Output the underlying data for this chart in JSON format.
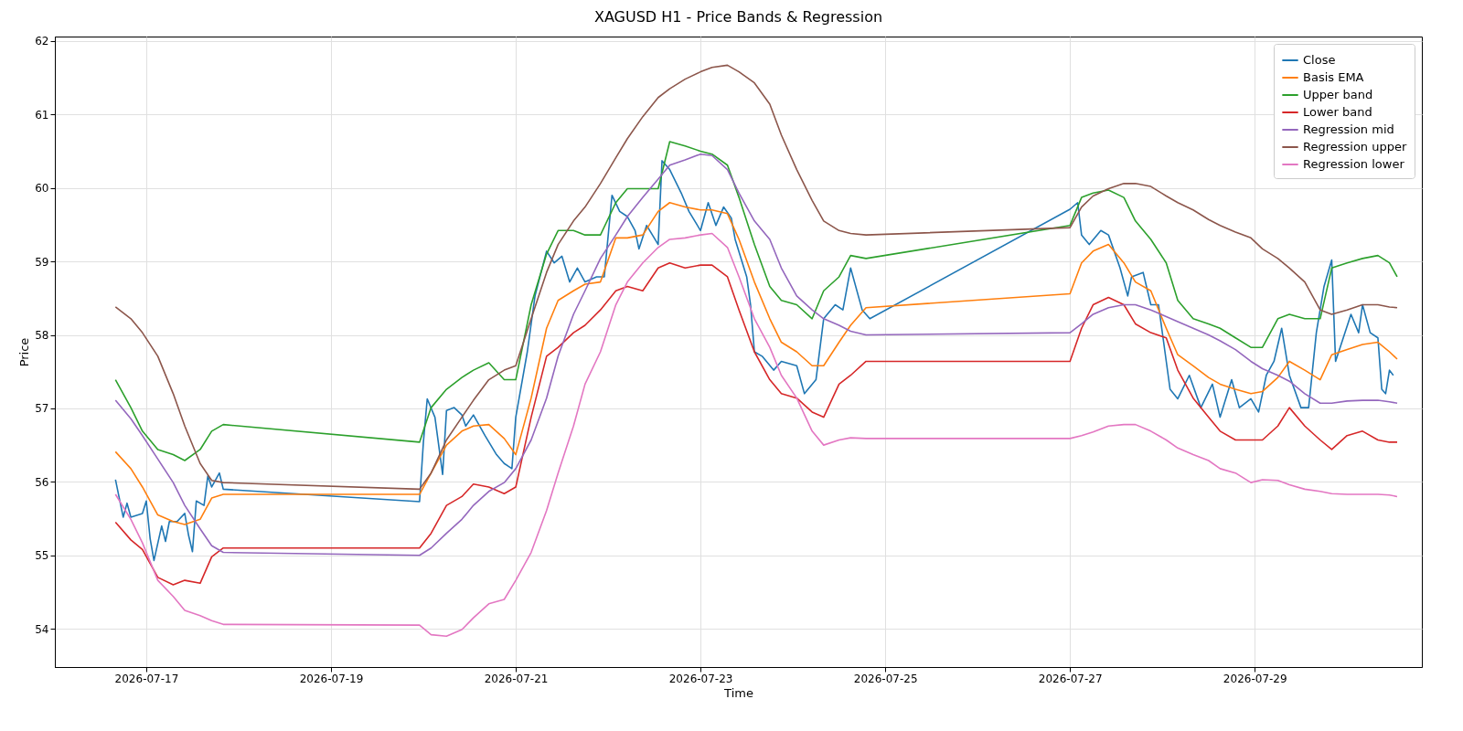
{
  "chart_data": {
    "type": "line",
    "title": "XAGUSD H1 - Price Bands & Regression",
    "xlabel": "Time",
    "ylabel": "Price",
    "grid": true,
    "legend": "top right",
    "xlim": [
      "2026-07-16T00:15",
      "2026-07-30T19:25"
    ],
    "xticks": [
      {
        "value": "2026-07-17",
        "label": "2026-07-17"
      },
      {
        "value": "2026-07-19",
        "label": "2026-07-19"
      },
      {
        "value": "2026-07-21",
        "label": "2026-07-21"
      },
      {
        "value": "2026-07-23",
        "label": "2026-07-23"
      },
      {
        "value": "2026-07-25",
        "label": "2026-07-25"
      },
      {
        "value": "2026-07-27",
        "label": "2026-07-27"
      },
      {
        "value": "2026-07-29",
        "label": "2026-07-29"
      }
    ],
    "ylim": [
      53.48,
      62.06
    ],
    "yticks": [
      54,
      55,
      56,
      57,
      58,
      59,
      60,
      61,
      62
    ],
    "x": [
      "2026-07-16T16:00",
      "2026-07-16T20:00",
      "2026-07-16T23:00",
      "2026-07-17T03:00",
      "2026-07-17T07:00",
      "2026-07-17T10:00",
      "2026-07-17T14:00",
      "2026-07-17T17:00",
      "2026-07-17T20:00",
      "2026-07-19T23:00",
      "2026-07-20T02:00",
      "2026-07-20T06:00",
      "2026-07-20T10:00",
      "2026-07-20T13:00",
      "2026-07-20T17:00",
      "2026-07-20T21:00",
      "2026-07-21T00:00",
      "2026-07-21T04:00",
      "2026-07-21T08:00",
      "2026-07-21T11:00",
      "2026-07-21T15:00",
      "2026-07-21T18:00",
      "2026-07-21T22:00",
      "2026-07-22T02:00",
      "2026-07-22T05:00",
      "2026-07-22T09:00",
      "2026-07-22T13:00",
      "2026-07-22T16:00",
      "2026-07-22T20:00",
      "2026-07-23T00:00",
      "2026-07-23T03:00",
      "2026-07-23T07:00",
      "2026-07-23T10:00",
      "2026-07-23T14:00",
      "2026-07-23T18:00",
      "2026-07-23T21:00",
      "2026-07-24T01:00",
      "2026-07-24T05:00",
      "2026-07-24T08:00",
      "2026-07-24T12:00",
      "2026-07-24T15:00",
      "2026-07-24T19:00",
      "2026-07-27T00:00",
      "2026-07-27T03:00",
      "2026-07-27T06:00",
      "2026-07-27T10:00",
      "2026-07-27T14:00",
      "2026-07-27T17:00",
      "2026-07-27T21:00",
      "2026-07-28T01:00",
      "2026-07-28T04:00",
      "2026-07-28T08:00",
      "2026-07-28T12:00",
      "2026-07-28T15:00",
      "2026-07-28T19:00",
      "2026-07-28T23:00",
      "2026-07-29T02:00",
      "2026-07-29T06:00",
      "2026-07-29T09:00",
      "2026-07-29T13:00",
      "2026-07-29T17:00",
      "2026-07-29T20:00",
      "2026-07-30T00:00",
      "2026-07-30T04:00",
      "2026-07-30T08:00",
      "2026-07-30T11:00",
      "2026-07-30T13:00"
    ],
    "series": [
      {
        "name": "Close",
        "color": "#1f77b4",
        "x": [
          "2026-07-16T16:00",
          "2026-07-16T18:00",
          "2026-07-16T19:00",
          "2026-07-16T20:00",
          "2026-07-16T23:00",
          "2026-07-17T00:00",
          "2026-07-17T01:00",
          "2026-07-17T02:00",
          "2026-07-17T04:00",
          "2026-07-17T05:00",
          "2026-07-17T06:00",
          "2026-07-17T08:00",
          "2026-07-17T10:00",
          "2026-07-17T11:00",
          "2026-07-17T12:00",
          "2026-07-17T13:00",
          "2026-07-17T15:00",
          "2026-07-17T16:00",
          "2026-07-17T17:00",
          "2026-07-17T19:00",
          "2026-07-17T20:00",
          "2026-07-19T23:00",
          "2026-07-20T00:00",
          "2026-07-20T01:00",
          "2026-07-20T03:00",
          "2026-07-20T05:00",
          "2026-07-20T06:00",
          "2026-07-20T08:00",
          "2026-07-20T10:00",
          "2026-07-20T11:00",
          "2026-07-20T13:00",
          "2026-07-20T16:00",
          "2026-07-20T19:00",
          "2026-07-20T21:00",
          "2026-07-20T23:00",
          "2026-07-21T00:00",
          "2026-07-21T03:00",
          "2026-07-21T05:00",
          "2026-07-21T08:00",
          "2026-07-21T10:00",
          "2026-07-21T12:00",
          "2026-07-21T14:00",
          "2026-07-21T16:00",
          "2026-07-21T18:00",
          "2026-07-21T21:00",
          "2026-07-21T23:00",
          "2026-07-22T01:00",
          "2026-07-22T03:00",
          "2026-07-22T05:00",
          "2026-07-22T07:00",
          "2026-07-22T08:00",
          "2026-07-22T10:00",
          "2026-07-22T13:00",
          "2026-07-22T14:00",
          "2026-07-22T16:00",
          "2026-07-22T19:00",
          "2026-07-22T21:00",
          "2026-07-23T00:00",
          "2026-07-23T02:00",
          "2026-07-23T04:00",
          "2026-07-23T06:00",
          "2026-07-23T08:00",
          "2026-07-23T09:00",
          "2026-07-23T12:00",
          "2026-07-23T13:00",
          "2026-07-23T14:00",
          "2026-07-23T16:00",
          "2026-07-23T19:00",
          "2026-07-23T21:00",
          "2026-07-24T01:00",
          "2026-07-24T03:00",
          "2026-07-24T06:00",
          "2026-07-24T08:00",
          "2026-07-24T11:00",
          "2026-07-24T13:00",
          "2026-07-24T15:00",
          "2026-07-24T18:00",
          "2026-07-24T20:00",
          "2026-07-27T00:00",
          "2026-07-27T02:00",
          "2026-07-27T03:00",
          "2026-07-27T05:00",
          "2026-07-27T08:00",
          "2026-07-27T10:00",
          "2026-07-27T13:00",
          "2026-07-27T15:00",
          "2026-07-27T16:00",
          "2026-07-27T19:00",
          "2026-07-27T21:00",
          "2026-07-27T23:00",
          "2026-07-28T02:00",
          "2026-07-28T04:00",
          "2026-07-28T07:00",
          "2026-07-28T10:00",
          "2026-07-28T13:00",
          "2026-07-28T15:00",
          "2026-07-28T18:00",
          "2026-07-28T20:00",
          "2026-07-28T23:00",
          "2026-07-29T01:00",
          "2026-07-29T03:00",
          "2026-07-29T05:00",
          "2026-07-29T07:00",
          "2026-07-29T09:00",
          "2026-07-29T12:00",
          "2026-07-29T14:00",
          "2026-07-29T16:00",
          "2026-07-29T18:00",
          "2026-07-29T20:00",
          "2026-07-29T21:00",
          "2026-07-29T23:00",
          "2026-07-30T01:00",
          "2026-07-30T03:00",
          "2026-07-30T04:00",
          "2026-07-30T06:00",
          "2026-07-30T08:00",
          "2026-07-30T09:00",
          "2026-07-30T10:00",
          "2026-07-30T11:00",
          "2026-07-30T12:00"
        ],
        "values": [
          56.03,
          55.52,
          55.71,
          55.52,
          55.57,
          55.74,
          55.23,
          54.93,
          55.4,
          55.19,
          55.46,
          55.46,
          55.57,
          55.27,
          55.05,
          55.74,
          55.68,
          56.08,
          55.93,
          56.12,
          55.9,
          55.73,
          56.54,
          57.13,
          56.88,
          56.1,
          56.97,
          57.01,
          56.91,
          56.76,
          56.91,
          56.63,
          56.37,
          56.25,
          56.18,
          56.88,
          57.77,
          58.53,
          59.14,
          58.98,
          59.07,
          58.72,
          58.91,
          58.72,
          58.79,
          58.79,
          59.9,
          59.68,
          59.61,
          59.42,
          59.17,
          59.49,
          59.23,
          60.37,
          60.25,
          59.93,
          59.68,
          59.42,
          59.8,
          59.49,
          59.74,
          59.59,
          59.3,
          58.79,
          58.41,
          57.77,
          57.71,
          57.52,
          57.64,
          57.58,
          57.2,
          57.39,
          58.22,
          58.41,
          58.34,
          58.91,
          58.34,
          58.22,
          59.71,
          59.8,
          59.36,
          59.23,
          59.42,
          59.36,
          58.91,
          58.53,
          58.79,
          58.85,
          58.41,
          58.41,
          57.26,
          57.13,
          57.45,
          57.01,
          57.33,
          56.88,
          57.39,
          57.01,
          57.13,
          56.95,
          57.45,
          57.64,
          58.09,
          57.45,
          57.01,
          57.01,
          58.03,
          58.66,
          59.02,
          57.64,
          57.96,
          58.28,
          58.03,
          58.41,
          58.03,
          57.96,
          57.26,
          57.2,
          57.52,
          57.45
        ]
      },
      {
        "name": "Basis EMA",
        "color": "#ff7f0e",
        "values": [
          56.41,
          56.18,
          55.93,
          55.55,
          55.46,
          55.42,
          55.49,
          55.78,
          55.83,
          55.83,
          56.12,
          56.5,
          56.69,
          56.76,
          56.78,
          56.59,
          56.37,
          57.14,
          58.09,
          58.47,
          58.6,
          58.69,
          58.72,
          59.32,
          59.32,
          59.36,
          59.68,
          59.8,
          59.74,
          59.7,
          59.7,
          59.65,
          59.3,
          58.72,
          58.22,
          57.9,
          57.77,
          57.58,
          57.58,
          57.9,
          58.13,
          58.37,
          58.56,
          58.98,
          59.14,
          59.23,
          58.98,
          58.72,
          58.6,
          58.09,
          57.73,
          57.58,
          57.42,
          57.33,
          57.26,
          57.2,
          57.23,
          57.42,
          57.64,
          57.52,
          57.39,
          57.73,
          57.8,
          57.87,
          57.9,
          57.77,
          57.67
        ]
      },
      {
        "name": "Upper band",
        "color": "#2ca02c",
        "values": [
          57.39,
          57.01,
          56.69,
          56.44,
          56.37,
          56.29,
          56.44,
          56.69,
          56.78,
          56.54,
          57.01,
          57.26,
          57.42,
          57.52,
          57.62,
          57.39,
          57.39,
          58.41,
          59.1,
          59.42,
          59.42,
          59.36,
          59.36,
          59.8,
          59.99,
          59.99,
          59.99,
          60.63,
          60.57,
          60.5,
          60.46,
          60.31,
          59.87,
          59.23,
          58.66,
          58.47,
          58.41,
          58.22,
          58.6,
          58.79,
          59.08,
          59.04,
          59.49,
          59.87,
          59.93,
          59.97,
          59.87,
          59.55,
          59.3,
          58.98,
          58.47,
          58.22,
          58.15,
          58.09,
          57.96,
          57.83,
          57.83,
          58.22,
          58.28,
          58.22,
          58.22,
          58.91,
          58.98,
          59.04,
          59.08,
          58.98,
          58.79
        ]
      },
      {
        "name": "Lower band",
        "color": "#d62728",
        "values": [
          55.45,
          55.21,
          55.08,
          54.7,
          54.6,
          54.66,
          54.62,
          54.98,
          55.1,
          55.1,
          55.3,
          55.68,
          55.8,
          55.97,
          55.93,
          55.84,
          55.93,
          56.88,
          57.71,
          57.83,
          58.03,
          58.13,
          58.34,
          58.6,
          58.66,
          58.6,
          58.91,
          58.98,
          58.91,
          58.95,
          58.95,
          58.79,
          58.34,
          57.77,
          57.39,
          57.2,
          57.14,
          56.95,
          56.88,
          57.33,
          57.45,
          57.64,
          57.64,
          58.09,
          58.41,
          58.51,
          58.41,
          58.15,
          58.03,
          57.96,
          57.52,
          57.14,
          56.88,
          56.69,
          56.57,
          56.57,
          56.57,
          56.76,
          57.01,
          56.76,
          56.57,
          56.44,
          56.63,
          56.69,
          56.57,
          56.54,
          56.54
        ]
      },
      {
        "name": "Regression mid",
        "color": "#9467bd",
        "values": [
          57.11,
          56.86,
          56.63,
          56.31,
          55.99,
          55.68,
          55.36,
          55.13,
          55.04,
          55.0,
          55.1,
          55.3,
          55.49,
          55.68,
          55.87,
          55.99,
          56.18,
          56.57,
          57.14,
          57.71,
          58.28,
          58.6,
          59.04,
          59.36,
          59.61,
          59.87,
          60.12,
          60.31,
          60.38,
          60.46,
          60.44,
          60.25,
          59.93,
          59.55,
          59.3,
          58.91,
          58.53,
          58.34,
          58.22,
          58.13,
          58.05,
          58.0,
          58.03,
          58.15,
          58.28,
          58.37,
          58.41,
          58.41,
          58.34,
          58.25,
          58.18,
          58.09,
          58.0,
          57.92,
          57.8,
          57.64,
          57.54,
          57.45,
          57.37,
          57.2,
          57.07,
          57.07,
          57.1,
          57.11,
          57.11,
          57.09,
          57.07
        ]
      },
      {
        "name": "Regression upper",
        "color": "#8c564b",
        "values": [
          58.38,
          58.22,
          58.03,
          57.71,
          57.2,
          56.76,
          56.25,
          56.02,
          55.99,
          55.9,
          56.12,
          56.57,
          56.88,
          57.11,
          57.39,
          57.52,
          57.58,
          58.22,
          58.85,
          59.23,
          59.55,
          59.74,
          60.06,
          60.41,
          60.67,
          60.97,
          61.23,
          61.35,
          61.48,
          61.58,
          61.64,
          61.67,
          61.58,
          61.43,
          61.14,
          60.72,
          60.25,
          59.83,
          59.55,
          59.42,
          59.38,
          59.36,
          59.46,
          59.74,
          59.89,
          59.99,
          60.06,
          60.06,
          60.02,
          59.89,
          59.8,
          59.7,
          59.57,
          59.49,
          59.4,
          59.32,
          59.17,
          59.04,
          58.91,
          58.72,
          58.34,
          58.28,
          58.34,
          58.41,
          58.41,
          58.38,
          58.37
        ]
      },
      {
        "name": "Regression lower",
        "color": "#e377c2",
        "values": [
          55.83,
          55.49,
          55.17,
          54.66,
          54.44,
          54.25,
          54.18,
          54.11,
          54.06,
          54.05,
          53.92,
          53.9,
          53.99,
          54.15,
          54.34,
          54.4,
          54.66,
          55.04,
          55.61,
          56.12,
          56.76,
          57.33,
          57.77,
          58.41,
          58.72,
          58.98,
          59.19,
          59.3,
          59.32,
          59.36,
          59.38,
          59.19,
          58.79,
          58.22,
          57.83,
          57.45,
          57.14,
          56.69,
          56.5,
          56.57,
          56.6,
          56.59,
          56.59,
          56.63,
          56.68,
          56.76,
          56.78,
          56.78,
          56.69,
          56.57,
          56.46,
          56.37,
          56.29,
          56.18,
          56.12,
          55.99,
          56.03,
          56.02,
          55.96,
          55.9,
          55.87,
          55.84,
          55.83,
          55.83,
          55.83,
          55.82,
          55.8
        ]
      }
    ]
  }
}
